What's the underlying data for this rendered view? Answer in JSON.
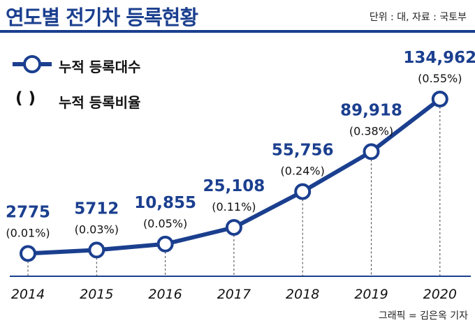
{
  "header": {
    "title": "연도별 전기차 등록현황",
    "source": "단위 : 대, 자료 : 국토부"
  },
  "legend": {
    "line_label": "누적 등록대수",
    "paren_symbol": "(   )",
    "paren_label": "누적 등록비율"
  },
  "credit": "그래픽 = 김은옥 기자",
  "colors": {
    "accent": "#1b3f8f"
  },
  "chart_data": {
    "type": "line",
    "title": "연도별 전기차 등록현황",
    "x": [
      "2014",
      "2015",
      "2016",
      "2017",
      "2018",
      "2019",
      "2020"
    ],
    "series": [
      {
        "name": "누적 등록대수",
        "values": [
          2775,
          5712,
          10855,
          25108,
          55756,
          89918,
          134962
        ],
        "labels": [
          "2775",
          "5712",
          "10,855",
          "25,108",
          "55,756",
          "89,918",
          "134,962"
        ]
      },
      {
        "name": "누적 등록비율",
        "values": [
          0.01,
          0.03,
          0.05,
          0.11,
          0.24,
          0.38,
          0.55
        ],
        "labels": [
          "(0.01%)",
          "(0.03%)",
          "(0.05%)",
          "(0.11%)",
          "(0.24%)",
          "(0.38%)",
          "(0.55%)"
        ]
      }
    ],
    "grid": false,
    "legend_position": "top-left"
  }
}
